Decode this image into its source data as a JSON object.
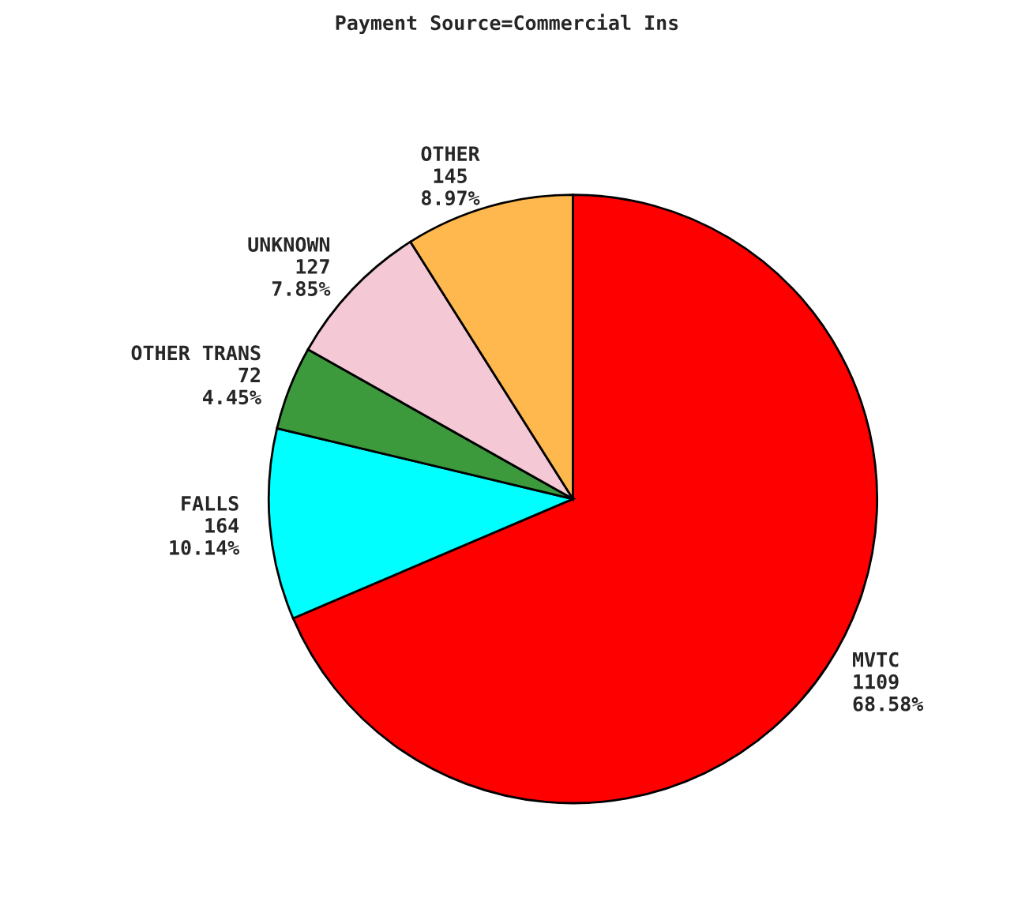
{
  "chart_data": {
    "type": "pie",
    "title": "Payment Source=Commercial Ins",
    "categories": [
      "MVTC",
      "FALLS",
      "OTHER TRANS",
      "UNKNOWN",
      "OTHER"
    ],
    "values": [
      1109,
      164,
      72,
      127,
      145
    ],
    "value_labels": [
      "1109\n68.58%",
      "164\n10.14%",
      "72\n4.45%",
      "127\n7.85%",
      "145\n8.97%"
    ],
    "colors": [
      "#ff0000",
      "#00ffff",
      "#3c9a3c",
      "#f4c8d4",
      "#ffb84d"
    ],
    "legend": false
  }
}
